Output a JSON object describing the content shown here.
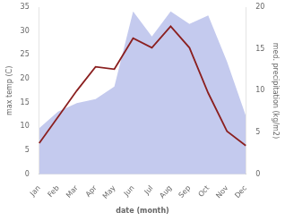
{
  "chart_data": {
    "type": "line",
    "xlabel": "date (month)",
    "ylabel": "max temp (C)",
    "y2label": "med. precipitation (kg/m2)",
    "categories": [
      "Jan",
      "Feb",
      "Mar",
      "Apr",
      "May",
      "Jun",
      "Jul",
      "Aug",
      "Sep",
      "Oct",
      "Nov",
      "Dec"
    ],
    "series": [
      {
        "type": "area",
        "axis": "y2",
        "color": "#b0b8e8",
        "values": [
          5.5,
          7.5,
          8.5,
          9.0,
          10.5,
          19.5,
          16.5,
          19.5,
          18.0,
          19.0,
          13.5,
          7.0
        ]
      },
      {
        "type": "line",
        "color": "#8b2020",
        "values": [
          6.5,
          12.0,
          17.5,
          22.5,
          22.0,
          28.5,
          26.5,
          31.0,
          26.5,
          17.0,
          9.0,
          6.0
        ]
      }
    ],
    "ylim": [
      0,
      35
    ],
    "yticks": [
      0,
      5,
      10,
      15,
      20,
      25,
      30,
      35
    ],
    "y2lim": [
      0,
      20
    ],
    "y2ticks": [
      0,
      5,
      10,
      15,
      20
    ],
    "grid": false
  }
}
